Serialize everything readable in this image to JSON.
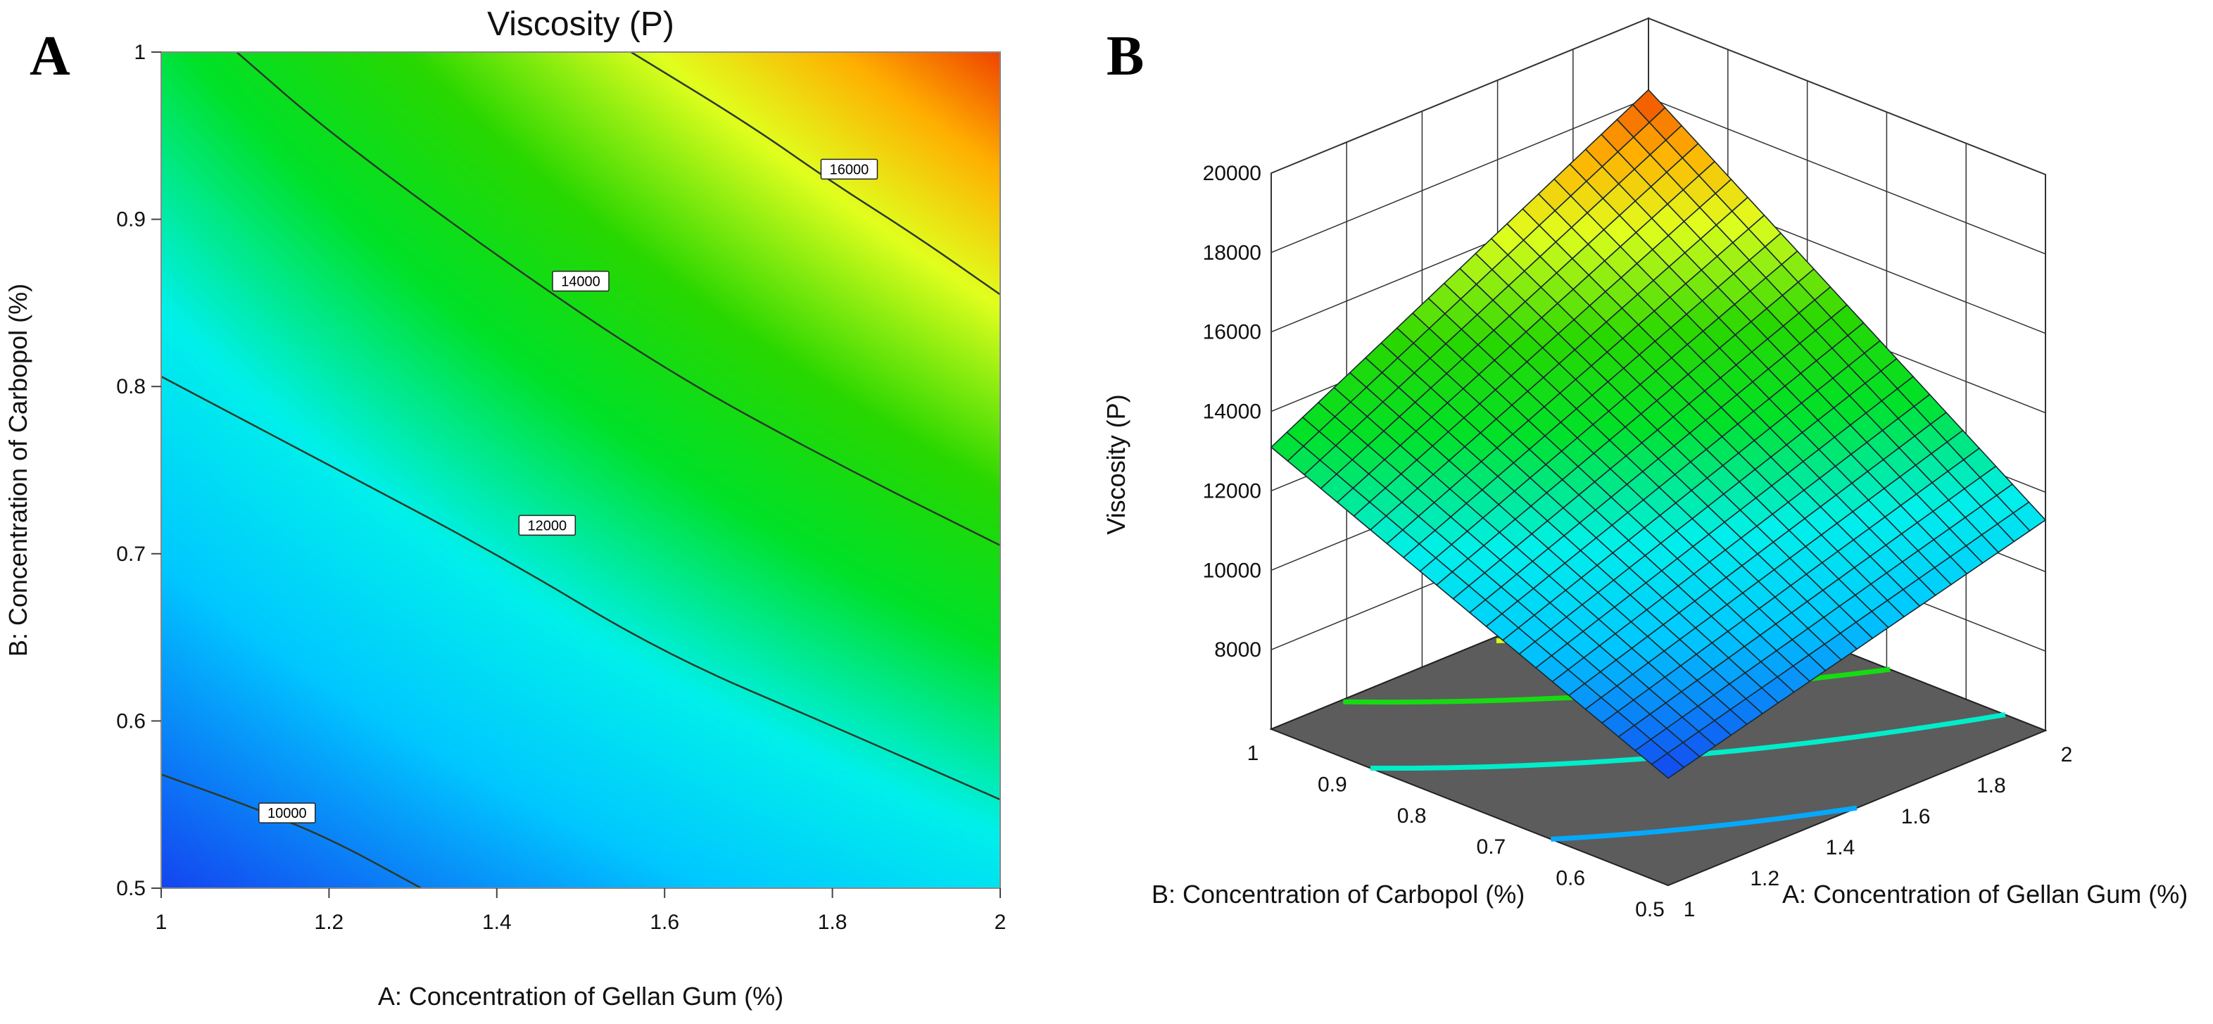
{
  "panels": {
    "a": "A",
    "b": "B"
  },
  "chart_data": [
    {
      "type": "contour",
      "title": "Viscosity (P)",
      "xlabel": "A: Concentration of Gellan Gum (%)",
      "ylabel": "B: Concentration of Carbopol (%)",
      "xlim": [
        1,
        2
      ],
      "ylim": [
        0.5,
        1
      ],
      "xticks": [
        "1",
        "1.2",
        "1.4",
        "1.6",
        "1.8",
        "2"
      ],
      "yticks": [
        "0.5",
        "0.6",
        "0.7",
        "0.8",
        "0.9",
        "1"
      ],
      "corner_values": {
        "a1_b05": 8700,
        "a2_b05": 11300,
        "a1_b1": 13100,
        "a2_b1": 18200
      },
      "contours": [
        {
          "level": 10000,
          "label": "10000",
          "points": [
            [
              1,
              0.568
            ],
            [
              1.1,
              0.55
            ],
            [
              1.2,
              0.53
            ],
            [
              1.31,
              0.5
            ]
          ]
        },
        {
          "level": 12000,
          "label": "12000",
          "points": [
            [
              1,
              0.806
            ],
            [
              1.2,
              0.753
            ],
            [
              1.4,
              0.7
            ],
            [
              1.6,
              0.64
            ],
            [
              1.8,
              0.597
            ],
            [
              2,
              0.553
            ]
          ]
        },
        {
          "level": 14000,
          "label": "14000",
          "points": [
            [
              1.09,
              1
            ],
            [
              1.2,
              0.952
            ],
            [
              1.4,
              0.878
            ],
            [
              1.6,
              0.81
            ],
            [
              1.8,
              0.755
            ],
            [
              2,
              0.705
            ]
          ]
        },
        {
          "level": 16000,
          "label": "16000",
          "points": [
            [
              1.56,
              1
            ],
            [
              1.7,
              0.957
            ],
            [
              1.8,
              0.922
            ],
            [
              1.9,
              0.89
            ],
            [
              2,
              0.855
            ]
          ]
        }
      ]
    },
    {
      "type": "surface3d",
      "xlabel": "A: Concentration of Gellan Gum (%)",
      "ylabel": "B: Concentration of Carbopol (%)",
      "zlabel": "Viscosity (P)",
      "xlim": [
        1,
        2
      ],
      "ylim": [
        0.5,
        1
      ],
      "zlim": [
        6000,
        20000
      ],
      "xticks": [
        "1",
        "1.2",
        "1.4",
        "1.6",
        "1.8",
        "2"
      ],
      "yticks": [
        "0.5",
        "0.6",
        "0.7",
        "0.8",
        "0.9",
        "1"
      ],
      "zticks": [
        "8000",
        "10000",
        "12000",
        "14000",
        "16000",
        "18000",
        "20000"
      ],
      "corner_values": {
        "a1_b05": 8700,
        "a2_b05": 11300,
        "a1_b1": 13100,
        "a2_b1": 18200
      },
      "floor_contours": [
        10000,
        12000,
        14000,
        16000
      ]
    }
  ]
}
